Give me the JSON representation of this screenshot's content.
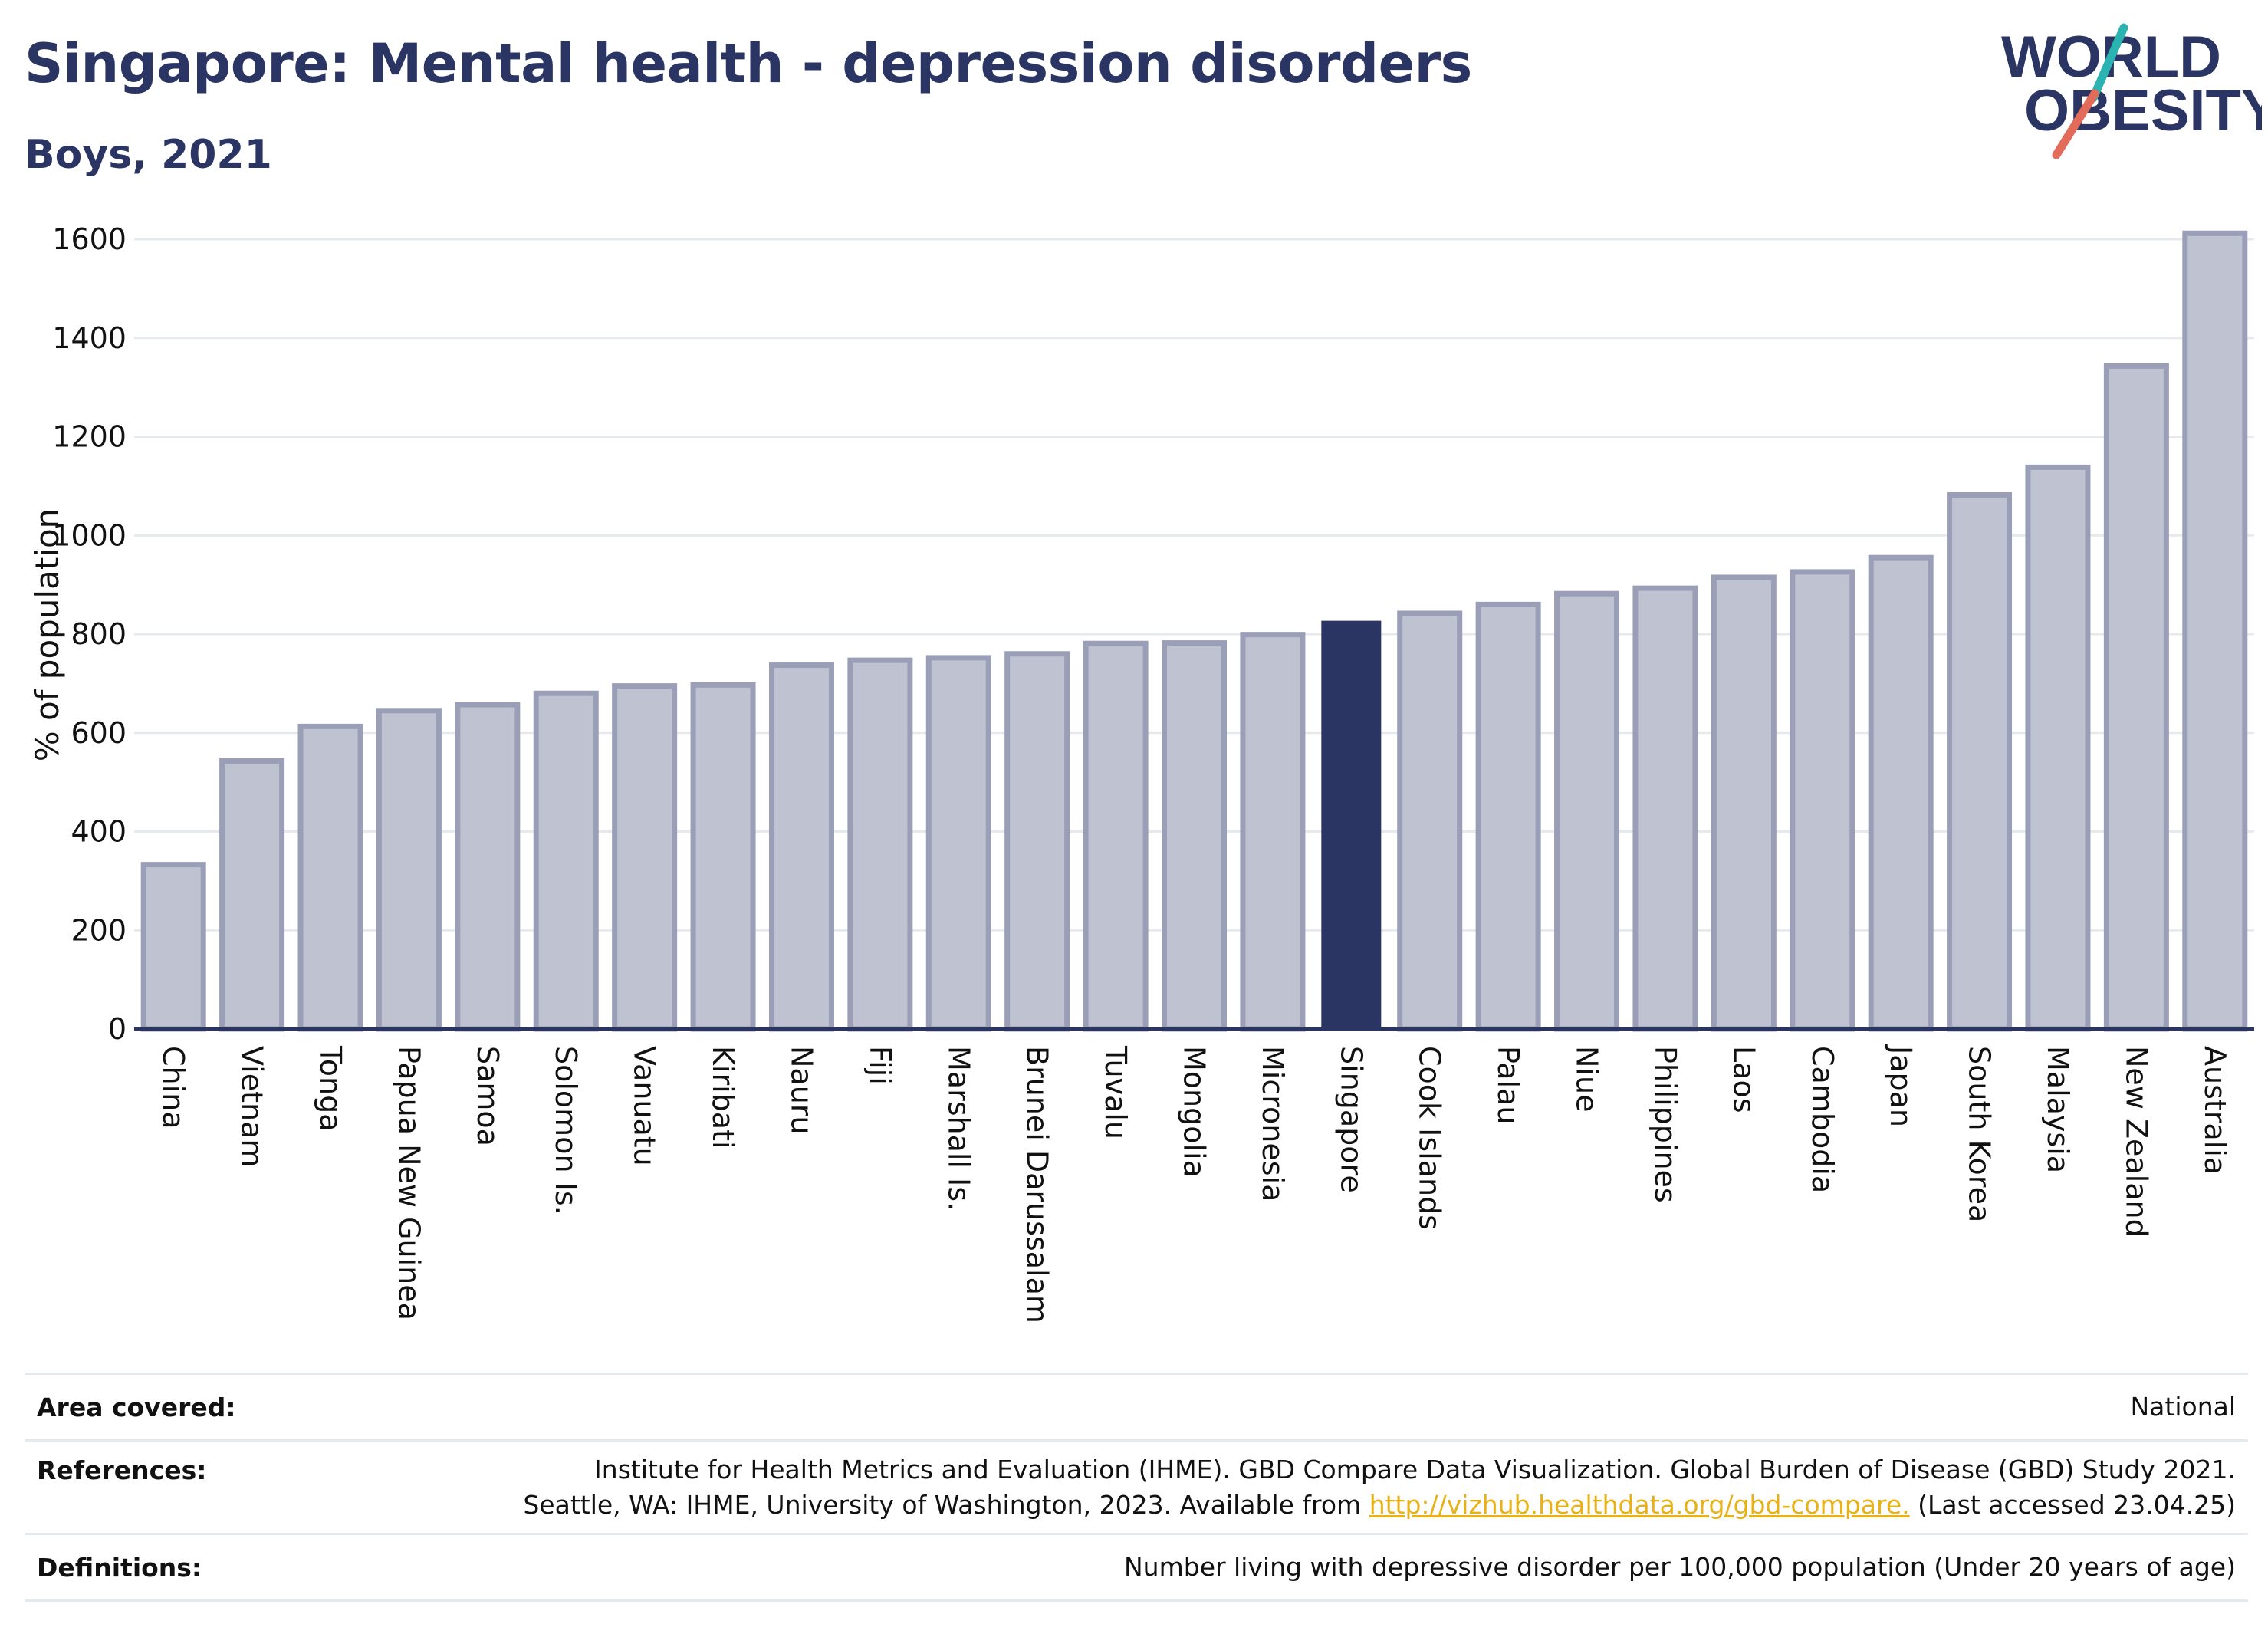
{
  "header": {
    "title": "Singapore: Mental health - depression disorders",
    "subtitle": "Boys, 2021"
  },
  "logo": {
    "line1": "WORLD",
    "line2": "OBESITY"
  },
  "chart_data": {
    "type": "bar",
    "ylabel": "% of population",
    "ylim": [
      0,
      1700
    ],
    "yticks": [
      0,
      200,
      400,
      600,
      800,
      1000,
      1200,
      1400,
      1600
    ],
    "grid": true,
    "highlight": "Singapore",
    "categories": [
      "China",
      "Vietnam",
      "Tonga",
      "Papua New Guinea",
      "Samoa",
      "Solomon Is.",
      "Vanuatu",
      "Kiribati",
      "Nauru",
      "Fiji",
      "Marshall Is.",
      "Brunei Darussalam",
      "Tuvalu",
      "Mongolia",
      "Micronesia",
      "Singapore",
      "Cook Islands",
      "Palau",
      "Niue",
      "Philippines",
      "Laos",
      "Cambodia",
      "Japan",
      "South Korea",
      "Malaysia",
      "New Zealand",
      "Australia"
    ],
    "values": [
      333,
      543,
      613,
      645,
      657,
      680,
      695,
      697,
      737,
      747,
      752,
      760,
      781,
      782,
      799,
      827,
      842,
      860,
      882,
      893,
      915,
      926,
      955,
      1082,
      1138,
      1343,
      1612
    ],
    "colors": {
      "bar": "#bfc2d0",
      "bar_border": "#9a9fb7",
      "highlight": "#2b3563",
      "grid": "#e6e9ee",
      "axis": "#2b3563"
    }
  },
  "meta": {
    "area_label": "Area covered:",
    "area_value": "National",
    "references_label": "References:",
    "references_line1": "Institute for Health Metrics and Evaluation (IHME). GBD Compare Data Visualization. Global Burden of Disease (GBD) Study 2021.",
    "references_line2_prefix": "Seattle, WA: IHME, University of Washington, 2023. Available from ",
    "references_link": "http://vizhub.healthdata.org/gbd-compare.",
    "references_line2_suffix": " (Last accessed 23.04.25)",
    "definitions_label": "Definitions:",
    "definitions_value": "Number living with depressive disorder per 100,000 population (Under 20 years of age)"
  }
}
